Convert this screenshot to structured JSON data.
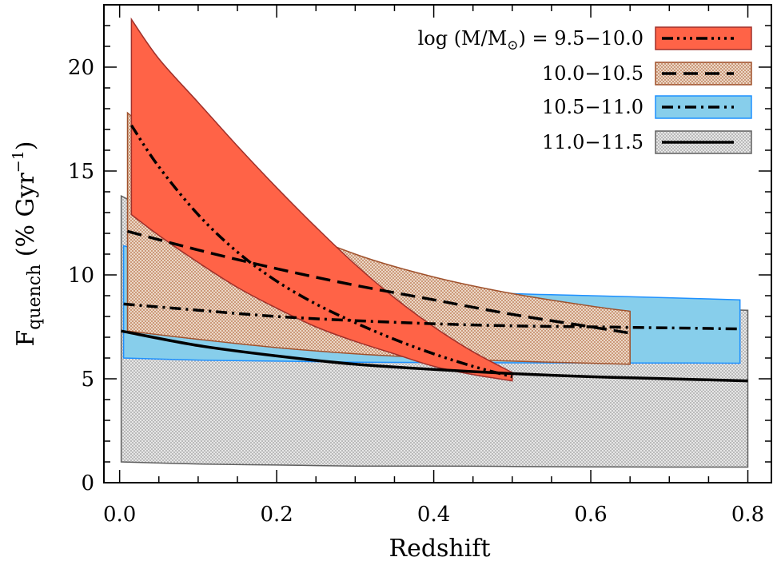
{
  "chart_data": {
    "type": "area",
    "title": "",
    "xlabel": "Redshift",
    "ylabel": {
      "main": "F",
      "sub": "quench",
      "unit_prefix": " (% Gyr",
      "sup": "−1",
      "unit_suffix": ")"
    },
    "xlim": [
      -0.02,
      0.83
    ],
    "ylim": [
      0,
      23
    ],
    "xticks": [
      0.0,
      0.2,
      0.4,
      0.6,
      0.8
    ],
    "xtick_labels": [
      "0.0",
      "0.2",
      "0.4",
      "0.6",
      "0.8"
    ],
    "yticks": [
      0,
      5,
      10,
      15,
      20
    ],
    "ytick_labels": [
      "0",
      "5",
      "10",
      "15",
      "20"
    ],
    "grid": false,
    "legend_position": "top-right",
    "legend_prefix": "log (M/M",
    "legend_suffix": ") = ",
    "series": [
      {
        "name": "9.5−10.0",
        "line_style": "dash-dot-dot-dot",
        "fill": "#FF6347",
        "edge": "#A0302A",
        "pattern": "solid",
        "x": [
          0.015,
          0.05,
          0.1,
          0.15,
          0.2,
          0.25,
          0.3,
          0.35,
          0.4,
          0.45,
          0.5
        ],
        "line": [
          17.2,
          15.2,
          12.9,
          11.1,
          9.7,
          8.6,
          7.7,
          6.9,
          6.2,
          5.6,
          5.1
        ],
        "upper": [
          22.3,
          20.4,
          18.3,
          16.2,
          14.2,
          12.3,
          10.5,
          8.9,
          7.5,
          6.3,
          5.3
        ],
        "lower": [
          12.9,
          11.9,
          10.6,
          9.4,
          8.4,
          7.5,
          6.8,
          6.2,
          5.6,
          5.2,
          4.9
        ]
      },
      {
        "name": "10.0−10.5",
        "line_style": "dashed",
        "fill": "#E8D2C0",
        "edge": "#A0522D",
        "pattern": "crosshatch",
        "x": [
          0.01,
          0.1,
          0.2,
          0.3,
          0.4,
          0.5,
          0.6,
          0.65
        ],
        "line": [
          12.1,
          11.2,
          10.3,
          9.5,
          8.8,
          8.1,
          7.5,
          7.2
        ],
        "upper": [
          17.8,
          14.9,
          12.6,
          11.0,
          9.9,
          9.1,
          8.5,
          8.25
        ],
        "lower": [
          7.3,
          6.9,
          6.5,
          6.2,
          6.0,
          5.85,
          5.75,
          5.7
        ]
      },
      {
        "name": "10.5−11.0",
        "line_style": "dash-dot",
        "fill": "#87CEEB",
        "edge": "#1E90FF",
        "pattern": "solid",
        "x": [
          0.005,
          0.1,
          0.2,
          0.3,
          0.4,
          0.5,
          0.6,
          0.7,
          0.79
        ],
        "line": [
          8.6,
          8.3,
          8.0,
          7.8,
          7.65,
          7.55,
          7.5,
          7.45,
          7.4
        ],
        "upper": [
          11.4,
          10.5,
          10.0,
          9.6,
          9.3,
          9.1,
          9.0,
          8.9,
          8.8
        ],
        "lower": [
          6.0,
          5.9,
          5.85,
          5.8,
          5.78,
          5.77,
          5.76,
          5.76,
          5.75
        ]
      },
      {
        "name": "11.0−11.5",
        "line_style": "solid",
        "fill": "#E6E6E6",
        "edge": "#606060",
        "pattern": "crosshatch",
        "x": [
          0.002,
          0.1,
          0.2,
          0.3,
          0.4,
          0.5,
          0.6,
          0.7,
          0.8
        ],
        "line": [
          7.3,
          6.6,
          6.1,
          5.7,
          5.45,
          5.25,
          5.1,
          5.0,
          4.9
        ],
        "upper": [
          13.8,
          12.0,
          10.9,
          10.0,
          9.3,
          8.9,
          8.6,
          8.4,
          8.3
        ],
        "lower": [
          1.0,
          0.9,
          0.85,
          0.8,
          0.8,
          0.78,
          0.76,
          0.75,
          0.75
        ]
      }
    ]
  }
}
